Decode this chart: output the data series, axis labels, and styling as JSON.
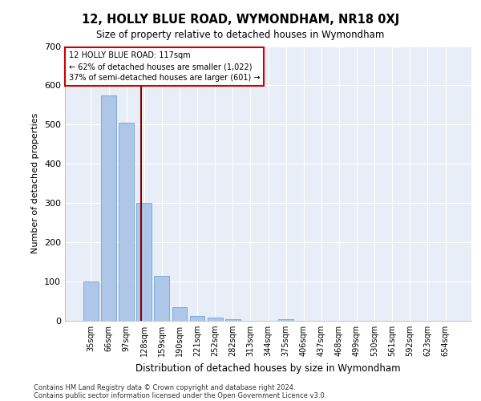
{
  "title": "12, HOLLY BLUE ROAD, WYMONDHAM, NR18 0XJ",
  "subtitle": "Size of property relative to detached houses in Wymondham",
  "xlabel": "Distribution of detached houses by size in Wymondham",
  "ylabel": "Number of detached properties",
  "categories": [
    "35sqm",
    "66sqm",
    "97sqm",
    "128sqm",
    "159sqm",
    "190sqm",
    "221sqm",
    "252sqm",
    "282sqm",
    "313sqm",
    "344sqm",
    "375sqm",
    "406sqm",
    "437sqm",
    "468sqm",
    "499sqm",
    "530sqm",
    "561sqm",
    "592sqm",
    "623sqm",
    "654sqm"
  ],
  "values": [
    100,
    575,
    505,
    300,
    115,
    35,
    13,
    8,
    5,
    0,
    0,
    5,
    0,
    0,
    0,
    0,
    0,
    0,
    0,
    0,
    0
  ],
  "bar_color": "#aec6e8",
  "bar_edge_color": "#5b9bd5",
  "vline_x": 2.82,
  "vline_color": "#8b0000",
  "annotation_text": "12 HOLLY BLUE ROAD: 117sqm\n← 62% of detached houses are smaller (1,022)\n37% of semi-detached houses are larger (601) →",
  "annotation_box_color": "#ffffff",
  "annotation_box_edge": "#cc0000",
  "ylim": [
    0,
    700
  ],
  "yticks": [
    0,
    100,
    200,
    300,
    400,
    500,
    600,
    700
  ],
  "background_color": "#e8eef7",
  "footer_line1": "Contains HM Land Registry data © Crown copyright and database right 2024.",
  "footer_line2": "Contains public sector information licensed under the Open Government Licence v3.0."
}
